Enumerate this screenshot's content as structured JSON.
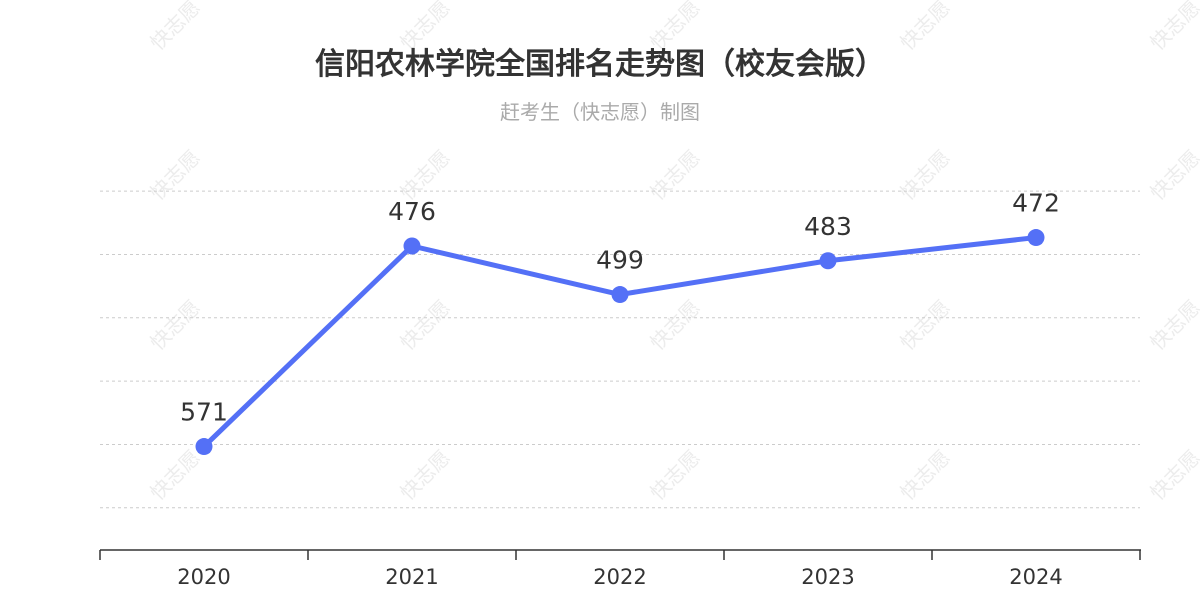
{
  "watermark_text": "快志愿",
  "chart_data": {
    "type": "line",
    "title": "信阳农林学院全国排名走势图（校友会版）",
    "subtitle": "赶考生（快志愿）制图",
    "categories": [
      "2020",
      "2021",
      "2022",
      "2023",
      "2024"
    ],
    "series": [
      {
        "values": [
          571,
          476,
          499,
          483,
          472
        ],
        "color": "#5470f6"
      }
    ],
    "y_inverse": true,
    "ylim": [
      440,
      620
    ],
    "y_gridlines": [
      450,
      480,
      510,
      540,
      570,
      600
    ],
    "y_tick_labels_visible": false,
    "grid": true,
    "legend": "none"
  }
}
